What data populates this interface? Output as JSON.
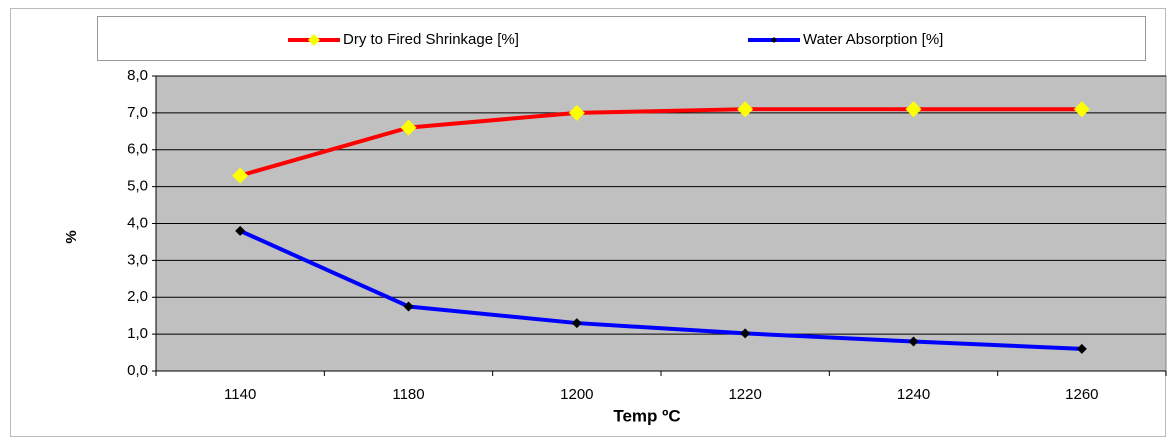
{
  "chart_data": {
    "type": "line",
    "xlabel": "Temp ºC",
    "ylabel": "%",
    "categories": [
      "1140",
      "1180",
      "1200",
      "1220",
      "1240",
      "1260"
    ],
    "series": [
      {
        "name": "Dry to Fired Shrinkage [%]",
        "color": "#ff0000",
        "marker_color": "#ffff00",
        "values": [
          5.3,
          6.6,
          7.0,
          7.1,
          7.1,
          7.1
        ]
      },
      {
        "name": "Water Absorption [%]",
        "color": "#0000ff",
        "marker_color": "#000000",
        "values": [
          3.8,
          1.75,
          1.3,
          1.02,
          0.8,
          0.6
        ]
      }
    ],
    "ylim": [
      0,
      8
    ],
    "yticks": [
      {
        "value": 0,
        "label": "0,0"
      },
      {
        "value": 1,
        "label": "1,0"
      },
      {
        "value": 2,
        "label": "2,0"
      },
      {
        "value": 3,
        "label": "3,0"
      },
      {
        "value": 4,
        "label": "4,0"
      },
      {
        "value": 5,
        "label": "5,0"
      },
      {
        "value": 6,
        "label": "6,0"
      },
      {
        "value": 7,
        "label": "7,0"
      },
      {
        "value": 8,
        "label": "8,0"
      }
    ],
    "grid": true,
    "legend": "top"
  }
}
